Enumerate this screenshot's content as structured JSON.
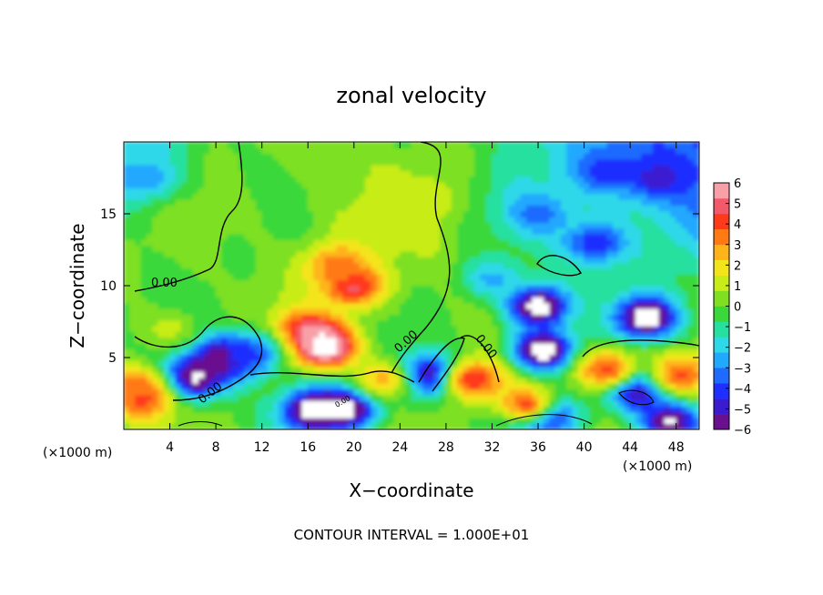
{
  "chart_data": {
    "type": "heatmap",
    "title": "zonal velocity",
    "xlabel": "X−coordinate",
    "ylabel": "Z−coordinate",
    "x_unit": "(×1000 m)",
    "z_unit": "(×1000 m)",
    "footer": "CONTOUR INTERVAL = 1.000E+01",
    "xlim": [
      0,
      50
    ],
    "ylim": [
      0,
      20
    ],
    "x_ticks": [
      4,
      8,
      12,
      16,
      20,
      24,
      28,
      32,
      36,
      40,
      44,
      48
    ],
    "y_ticks": [
      5,
      10,
      15
    ],
    "colorbar": {
      "range": [
        -6,
        6
      ],
      "ticks": [
        6,
        5,
        4,
        3,
        2,
        1,
        0,
        -1,
        -2,
        -3,
        -4,
        -5,
        -6
      ],
      "colors": [
        "#6a0f8e",
        "#3a1bd0",
        "#1f2fff",
        "#1f6bff",
        "#21a8ff",
        "#2fd8e8",
        "#27e0a0",
        "#3ad83a",
        "#7ee020",
        "#c8ec18",
        "#f4e41a",
        "#ffb31a",
        "#ff7a12",
        "#ff3a1a",
        "#f25a6a",
        "#f8a0a8"
      ]
    },
    "contour_labels": [
      "0.00",
      "0.00",
      "0.00",
      "0.00",
      "0.00"
    ],
    "features": [
      {
        "x": 20.0,
        "z": 10.0,
        "value": 5.0
      },
      {
        "x": 18.5,
        "z": 11.5,
        "value": 3.5
      },
      {
        "x": 16.0,
        "z": 7.0,
        "value": 4.5
      },
      {
        "x": 17.5,
        "z": 5.8,
        "value": 7.5
      },
      {
        "x": 8.5,
        "z": 5.0,
        "value": -7.5
      },
      {
        "x": 6.0,
        "z": 3.6,
        "value": -7.0
      },
      {
        "x": 19.5,
        "z": 1.6,
        "value": -7.5
      },
      {
        "x": 16.5,
        "z": 1.3,
        "value": -7.5
      },
      {
        "x": 26.5,
        "z": 3.8,
        "value": -7.0
      },
      {
        "x": 36.0,
        "z": 8.6,
        "value": -7.5
      },
      {
        "x": 36.5,
        "z": 5.5,
        "value": -7.5
      },
      {
        "x": 45.5,
        "z": 7.8,
        "value": -7.5
      },
      {
        "x": 44.5,
        "z": 2.8,
        "value": -7.0
      },
      {
        "x": 36.5,
        "z": 1.0,
        "value": -7.0
      },
      {
        "x": 47.5,
        "z": 0.6,
        "value": -6.5
      },
      {
        "x": 1.5,
        "z": 2.2,
        "value": 4.5
      },
      {
        "x": 0.5,
        "z": 3.0,
        "value": 3.5
      },
      {
        "x": 30.5,
        "z": 3.5,
        "value": 4.5
      },
      {
        "x": 35.0,
        "z": 1.8,
        "value": 4.0
      },
      {
        "x": 42.0,
        "z": 4.2,
        "value": 4.0
      },
      {
        "x": 48.5,
        "z": 3.8,
        "value": 4.0
      },
      {
        "x": 22.5,
        "z": 3.5,
        "value": 2.5
      },
      {
        "x": 42.0,
        "z": 18.0,
        "value": -4.5
      },
      {
        "x": 46.5,
        "z": 17.5,
        "value": -5.0
      },
      {
        "x": 41.0,
        "z": 13.0,
        "value": -4.5
      },
      {
        "x": 36.0,
        "z": 15.0,
        "value": -3.5
      },
      {
        "x": 2.0,
        "z": 17.5,
        "value": -3.0
      },
      {
        "x": 28.0,
        "z": 19.0,
        "value": 0.5
      },
      {
        "x": 26.0,
        "z": 16.0,
        "value": 1.5
      },
      {
        "x": 9.0,
        "z": 15.0,
        "value": 0.2
      },
      {
        "x": 11.0,
        "z": 5.2,
        "value": -4.0
      },
      {
        "x": 32.0,
        "z": 10.5,
        "value": -2.5
      },
      {
        "x": 4.0,
        "z": 7.0,
        "value": 1.0
      }
    ]
  }
}
